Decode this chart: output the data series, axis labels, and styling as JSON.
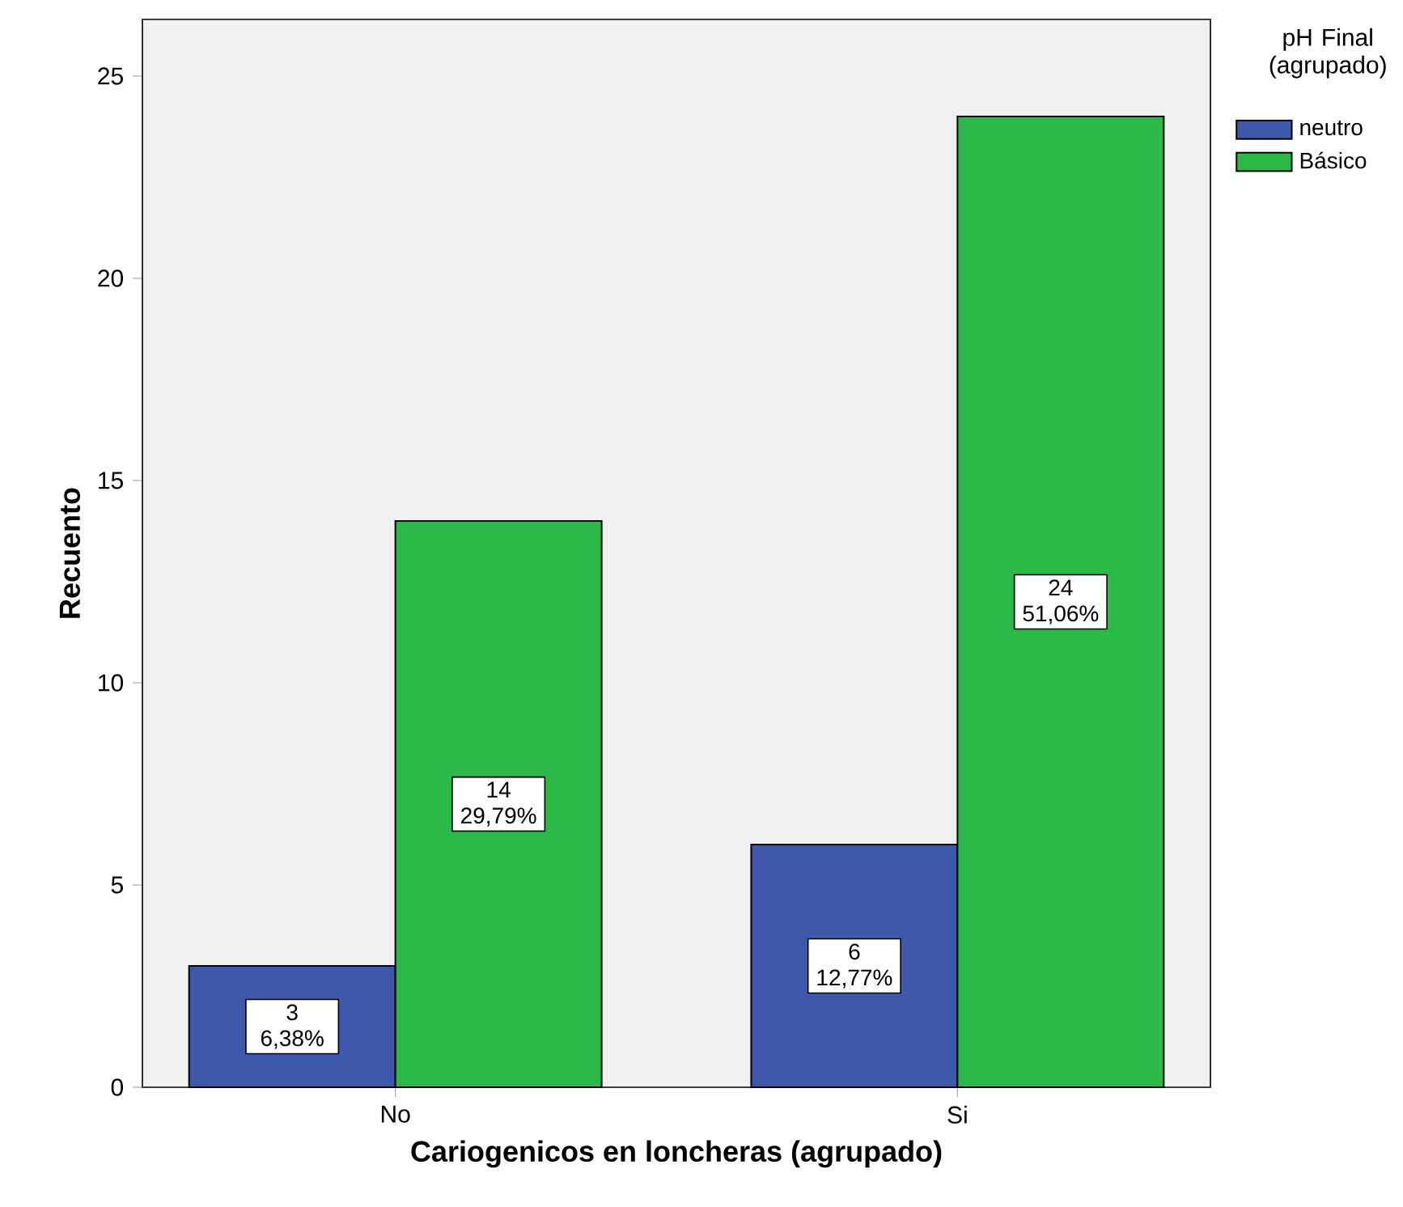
{
  "chart_data": {
    "type": "bar",
    "xlabel": "Cariogenicos en loncheras (agrupado)",
    "ylabel": "Recuento",
    "legend_title": "pH Final (agrupado)",
    "categories": [
      "No",
      "Si"
    ],
    "series": [
      {
        "name": "neutro",
        "color": "#3e58ac",
        "values": [
          3,
          6
        ],
        "value_labels": [
          "3 6,38%",
          "6 12,77%"
        ]
      },
      {
        "name": "Básico",
        "color": "#2db84a",
        "values": [
          14,
          24
        ],
        "value_labels": [
          "14 29,79%",
          "24 51,06%"
        ]
      }
    ],
    "ylim": [
      0,
      26.4
    ],
    "yticks": [
      0,
      5,
      10,
      15,
      20,
      25
    ],
    "grid": false,
    "legend": "top right"
  }
}
